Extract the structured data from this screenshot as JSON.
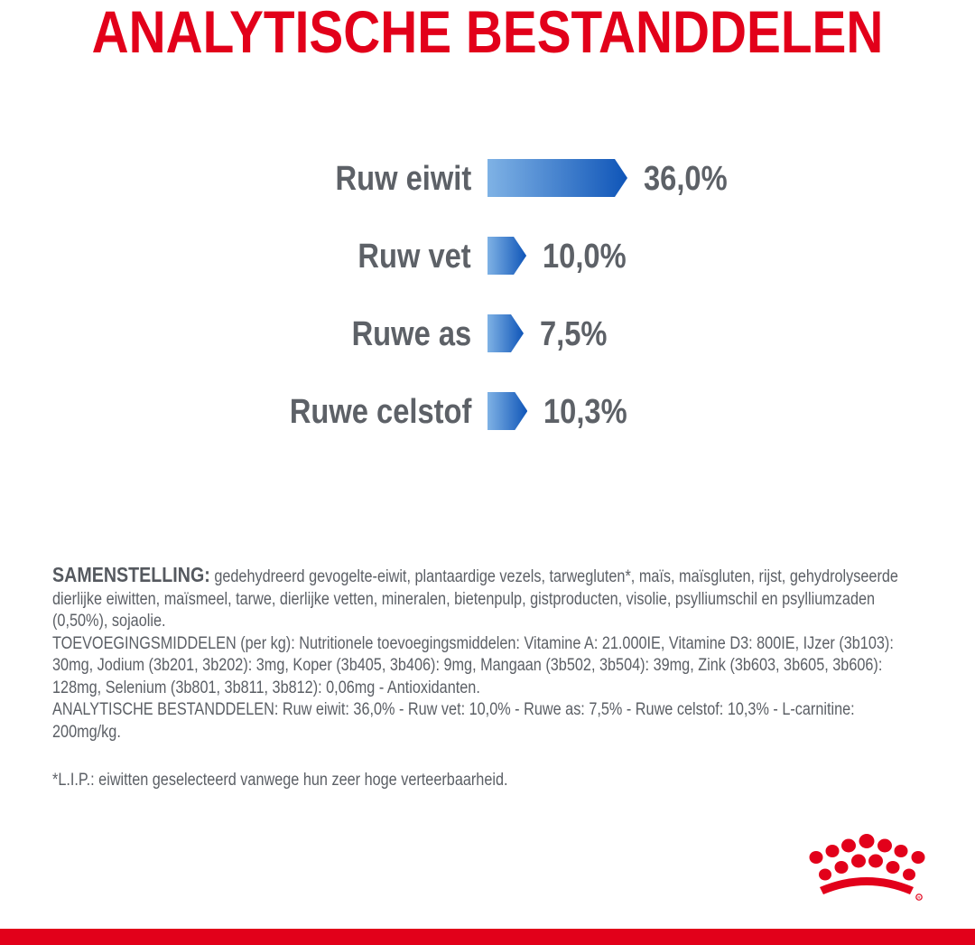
{
  "header": {
    "title": "ANALYTISCHE BESTANDDELEN"
  },
  "chart_data": {
    "type": "bar",
    "categories": [
      "Ruw eiwit",
      "Ruw vet",
      "Ruwe as",
      "Ruwe celstof"
    ],
    "values": [
      36.0,
      10.0,
      7.5,
      10.3
    ],
    "value_labels": [
      "36,0%",
      "10,0%",
      "7,5%",
      "10,3%"
    ],
    "unit": "%",
    "orientation": "horizontal",
    "bar_shape": "arrow",
    "bar_gradient": [
      "#7fb2e5",
      "#0f55b8"
    ]
  },
  "composition": {
    "lead": "SAMENSTELLING:",
    "ingredients": " gedehydreerd gevogelte-eiwit, plantaardige vezels, tarwegluten*, maïs, maïsgluten, rijst, gehydrolyseerde dierlijke eiwitten, maïsmeel, tarwe, dierlijke vetten, mineralen, bietenpulp, gistproducten, visolie, psylliumschil en psylliumzaden (0,50%), sojaolie.",
    "additives": "TOEVOEGINGSMIDDELEN (per kg): Nutritionele toevoegingsmiddelen: Vitamine A: 21.000IE, Vitamine D3: 800IE, IJzer (3b103): 30mg, Jodium (3b201, 3b202): 3mg, Koper (3b405, 3b406): 9mg, Mangaan (3b502, 3b504): 39mg, Zink (3b603, 3b605, 3b606): 128mg, Selenium (3b801, 3b811, 3b812): 0,06mg - Antioxidanten.",
    "analytical": "ANALYTISCHE BESTANDDELEN: Ruw eiwit: 36,0% - Ruw vet: 10,0% - Ruwe as: 7,5% - Ruwe celstof: 10,3% - L-carnitine: 200mg/kg."
  },
  "footnote": "*L.I.P.: eiwitten geselecteerd vanwege hun zeer hoge verteerbaarheid.",
  "brand": {
    "logo_icon": "crown-logo-icon",
    "accent_color": "#e2001a"
  }
}
